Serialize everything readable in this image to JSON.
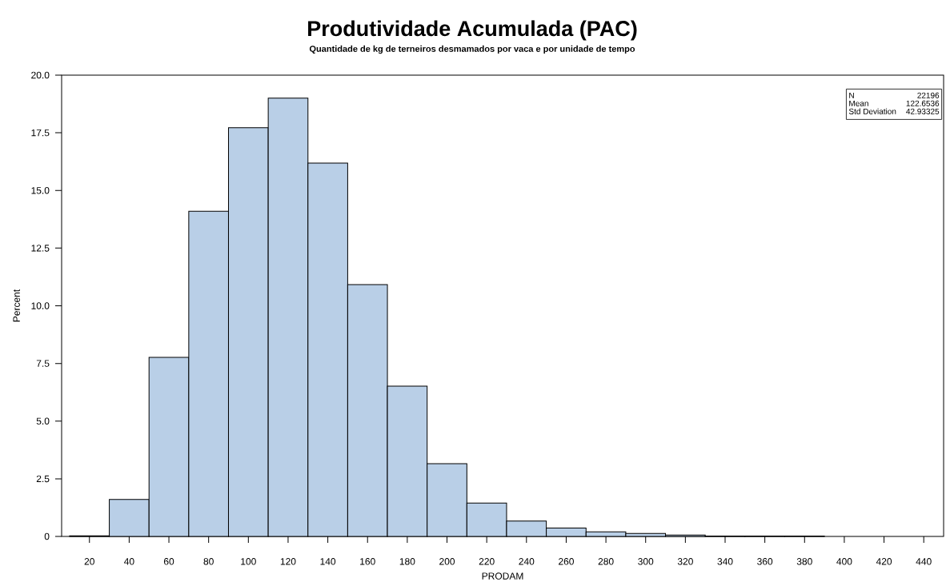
{
  "chart_data": {
    "type": "histogram",
    "title": "Produtividade Acumulada (PAC)",
    "subtitle": "Quantidade de kg de terneiros desmamados por vaca e por unidade de tempo",
    "xlabel": "PRODAM",
    "ylabel": "Percent",
    "bins": [
      10,
      30,
      50,
      70,
      90,
      110,
      130,
      150,
      170,
      190,
      210,
      230,
      250,
      270,
      290,
      310,
      330,
      350,
      370,
      390,
      410,
      430,
      450
    ],
    "values": [
      0.03,
      1.6,
      7.76,
      14.1,
      17.72,
      19.0,
      16.19,
      10.92,
      6.52,
      3.15,
      1.45,
      0.67,
      0.36,
      0.2,
      0.13,
      0.06,
      0.02,
      0.02,
      0.02,
      0.02,
      null,
      null
    ],
    "color": "#b9cfe7",
    "xlim": [
      6,
      450
    ],
    "ylim": [
      0,
      20
    ],
    "xticks": [
      20,
      40,
      60,
      80,
      100,
      120,
      140,
      160,
      180,
      200,
      220,
      240,
      260,
      280,
      300,
      320,
      340,
      360,
      380,
      400,
      420,
      440
    ],
    "yticks": [
      0,
      {
        "value": 2.5,
        "label": "2.5"
      },
      {
        "value": 5,
        "label": "5.0"
      },
      {
        "value": 7.5,
        "label": "7.5"
      },
      {
        "value": 10,
        "label": "10.0"
      },
      {
        "value": 12.5,
        "label": "12.5"
      },
      {
        "value": 15,
        "label": "15.0"
      },
      {
        "value": 17.5,
        "label": "17.5"
      },
      {
        "value": 20,
        "label": "20.0"
      }
    ],
    "annotations": [
      "N",
      "22196",
      "Mean",
      "122.6536",
      "Std Deviation",
      "42.93325"
    ]
  }
}
